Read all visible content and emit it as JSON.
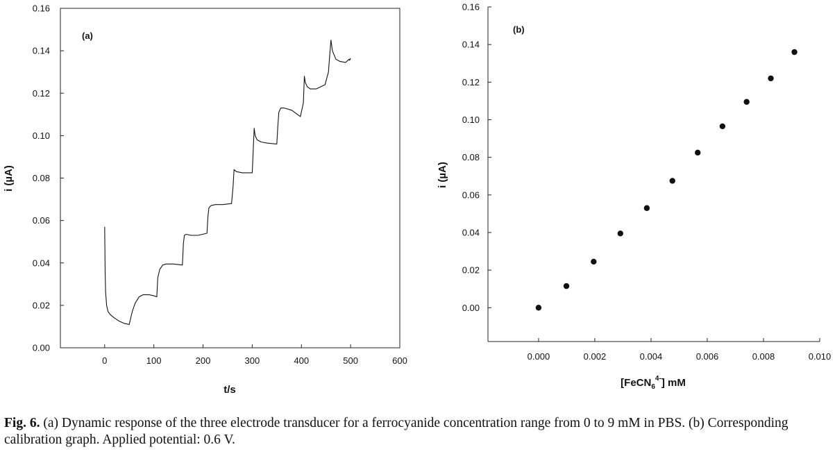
{
  "chart_data": [
    {
      "panel_label": "(a)",
      "type": "line",
      "xlabel": "t/s",
      "ylabel": "i (µA)",
      "xlim": [
        -90,
        600
      ],
      "ylim": [
        0,
        0.16
      ],
      "xticks": [
        0,
        100,
        200,
        300,
        400,
        500,
        600
      ],
      "xtick_labels": [
        "0",
        "100",
        "200",
        "300",
        "400",
        "500",
        "600"
      ],
      "yticks": [
        0,
        0.02,
        0.04,
        0.06,
        0.08,
        0.1,
        0.12,
        0.14,
        0.16
      ],
      "ytick_labels": [
        "0.00",
        "0.02",
        "0.04",
        "0.06",
        "0.08",
        "0.10",
        "0.12",
        "0.14",
        "0.16"
      ],
      "grid": false,
      "series": [
        {
          "x": [
            0,
            1,
            2,
            4,
            7,
            12,
            20,
            30,
            40,
            50,
            52,
            56,
            62,
            70,
            78,
            90,
            100,
            106,
            108,
            112,
            118,
            125,
            140,
            158,
            160,
            162,
            166,
            175,
            190,
            208,
            210,
            212,
            216,
            225,
            240,
            258,
            261,
            263,
            268,
            280,
            300,
            302,
            304,
            306,
            310,
            318,
            330,
            350,
            352,
            354,
            358,
            365,
            380,
            398,
            404,
            406,
            408,
            412,
            418,
            430,
            448,
            455,
            458,
            460,
            463,
            470,
            478,
            490,
            497,
            498,
            500
          ],
          "y": [
            0.057,
            0.035,
            0.026,
            0.02,
            0.017,
            0.0155,
            0.014,
            0.0125,
            0.0115,
            0.011,
            0.013,
            0.017,
            0.021,
            0.024,
            0.025,
            0.025,
            0.0245,
            0.024,
            0.033,
            0.037,
            0.039,
            0.0395,
            0.0395,
            0.039,
            0.049,
            0.053,
            0.0535,
            0.053,
            0.053,
            0.054,
            0.062,
            0.066,
            0.067,
            0.0675,
            0.0675,
            0.068,
            0.076,
            0.084,
            0.083,
            0.0825,
            0.0825,
            0.093,
            0.1035,
            0.1,
            0.098,
            0.097,
            0.0965,
            0.096,
            0.104,
            0.111,
            0.113,
            0.113,
            0.112,
            0.109,
            0.1155,
            0.128,
            0.125,
            0.123,
            0.122,
            0.122,
            0.124,
            0.13,
            0.1395,
            0.145,
            0.14,
            0.136,
            0.135,
            0.1345,
            0.136,
            0.1355,
            0.1365
          ]
        }
      ]
    },
    {
      "panel_label": "(b)",
      "type": "scatter",
      "xlabel": "[FeCN₆⁴⁻] mM",
      "xlabel_parts": {
        "pre": "[FeCN",
        "sub": "6",
        "sup": "4-",
        "post": "] mM"
      },
      "ylabel": "i (µA)",
      "xlim": [
        -0.0018,
        0.01
      ],
      "ylim": [
        -0.018,
        0.16
      ],
      "xticks": [
        0,
        0.002,
        0.004,
        0.006,
        0.008,
        0.01
      ],
      "xtick_labels": [
        "0.000",
        "0.002",
        "0.004",
        "0.006",
        "0.008",
        "0.010"
      ],
      "yticks": [
        0,
        0.02,
        0.04,
        0.06,
        0.08,
        0.1,
        0.12,
        0.14,
        0.16
      ],
      "ytick_labels": [
        "0.00",
        "0.02",
        "0.04",
        "0.06",
        "0.08",
        "0.10",
        "0.12",
        "0.14",
        "0.16"
      ],
      "grid": false,
      "series": [
        {
          "x": [
            0,
            0.00099,
            0.00196,
            0.00291,
            0.00385,
            0.00476,
            0.00566,
            0.00654,
            0.0074,
            0.00826,
            0.0091
          ],
          "y": [
            0.0,
            0.0115,
            0.0245,
            0.0395,
            0.053,
            0.0675,
            0.0825,
            0.0965,
            0.1095,
            0.122,
            0.136
          ]
        }
      ]
    }
  ],
  "caption": {
    "label": "Fig. 6.",
    "text": " (a) Dynamic response of the three electrode transducer for a ferrocyanide concentration range from 0 to 9 mM in PBS. (b) Corresponding calibration graph. Applied potential: 0.6 V."
  }
}
